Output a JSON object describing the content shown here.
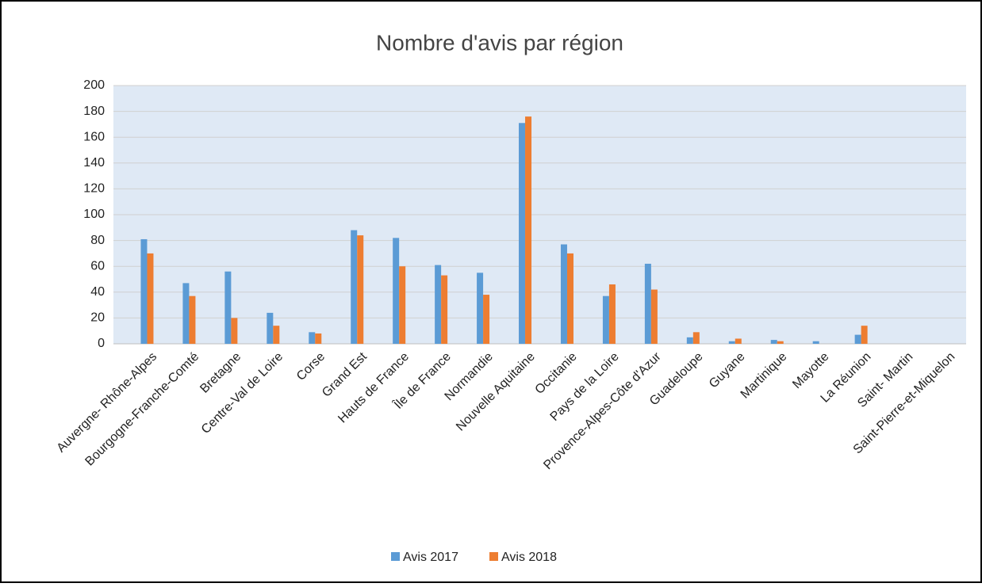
{
  "chart_data": {
    "type": "bar",
    "title": "Nombre d'avis par région",
    "categories": [
      "Auvergne- Rhône-Alpes",
      "Bourgogne-Franche-Comté",
      "Bretagne",
      "Centre-Val de Loire",
      "Corse",
      "Grand Est",
      "Hauts de France",
      "Île de France",
      "Normandie",
      "Nouvelle Aquitaine",
      "Occitanie",
      "Pays de la Loire",
      "Provence-Alpes-Côte d'Azur",
      "Guadeloupe",
      "Guyane",
      "Martinique",
      "Mayotte",
      "La Réunion",
      "Saint- Martin",
      "Saint-Pierre-et-Miquelon"
    ],
    "series": [
      {
        "name": "Avis 2017",
        "color": "#5b9bd5",
        "values": [
          81,
          47,
          56,
          24,
          9,
          88,
          82,
          61,
          55,
          171,
          77,
          37,
          62,
          5,
          2,
          3,
          2,
          7,
          0,
          0
        ]
      },
      {
        "name": "Avis 2018",
        "color": "#ed7d31",
        "values": [
          70,
          37,
          20,
          14,
          8,
          84,
          60,
          53,
          38,
          176,
          70,
          46,
          42,
          9,
          4,
          2,
          0,
          14,
          0,
          0
        ]
      }
    ],
    "ylim": [
      0,
      200
    ],
    "yticks": [
      0,
      20,
      40,
      60,
      80,
      100,
      120,
      140,
      160,
      180,
      200
    ],
    "grid": true,
    "legend": "bottom"
  }
}
